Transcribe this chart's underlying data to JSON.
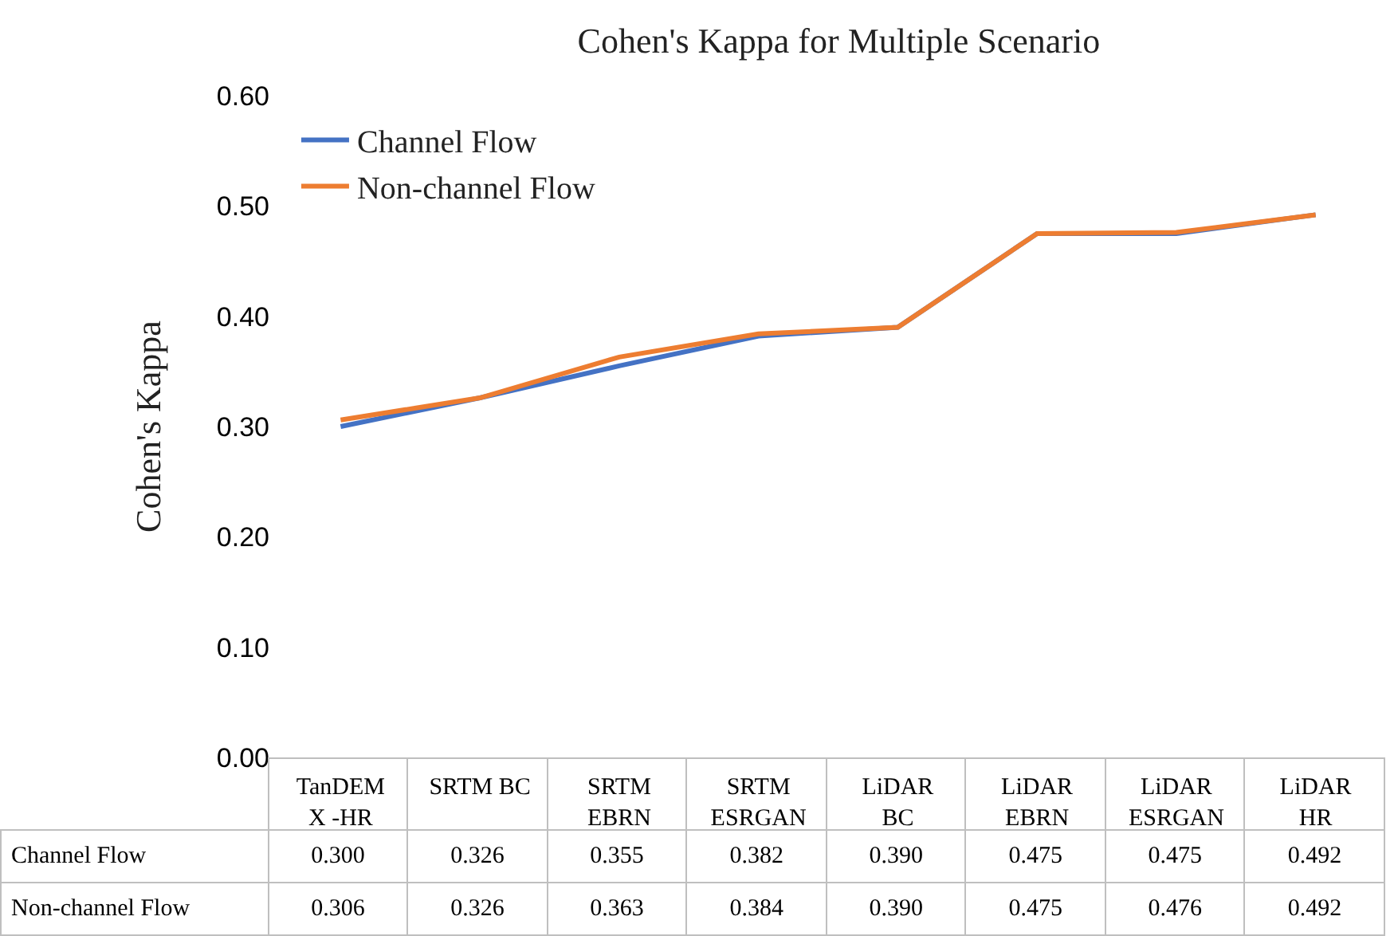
{
  "chart_data": {
    "type": "line",
    "title": "Cohen's Kappa for Multiple Scenario",
    "ylabel": "Cohen's Kappa",
    "categories": [
      "TanDEM\nX -HR",
      "SRTM BC",
      "SRTM\nEBRN",
      "SRTM\nESRGAN",
      "LiDAR\nBC",
      "LiDAR\nEBRN",
      "LiDAR\nESRGAN",
      "LiDAR\nHR"
    ],
    "series": [
      {
        "name": "Channel Flow",
        "color": "#4472c4",
        "values": [
          0.3,
          0.326,
          0.355,
          0.382,
          0.39,
          0.475,
          0.475,
          0.492
        ],
        "value_labels": [
          "0.300",
          "0.326",
          "0.355",
          "0.382",
          "0.390",
          "0.475",
          "0.475",
          "0.492"
        ]
      },
      {
        "name": "Non-channel Flow",
        "color": "#ed7d31",
        "values": [
          0.306,
          0.326,
          0.363,
          0.384,
          0.39,
          0.475,
          0.476,
          0.492
        ],
        "value_labels": [
          "0.306",
          "0.326",
          "0.363",
          "0.384",
          "0.390",
          "0.475",
          "0.476",
          "0.492"
        ]
      }
    ],
    "ylim": [
      0,
      0.6
    ],
    "yticks": [
      {
        "value": 0,
        "label": "0.00"
      },
      {
        "value": 0.1,
        "label": "0.10"
      },
      {
        "value": 0.2,
        "label": "0.20"
      },
      {
        "value": 0.3,
        "label": "0.30"
      },
      {
        "value": 0.4,
        "label": "0.40"
      },
      {
        "value": 0.5,
        "label": "0.50"
      },
      {
        "value": 0.6,
        "label": "0.60"
      }
    ],
    "legend": "top left",
    "grid": false,
    "marker": "none",
    "line_style": "solid"
  }
}
